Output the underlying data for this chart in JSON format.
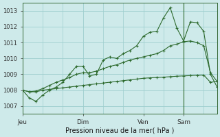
{
  "background_color": "#ceeaea",
  "plot_bg_color": "#ceeaea",
  "grid_color": "#9ecece",
  "line_color": "#2d6a2d",
  "title": "Pression niveau de la mer( hPa )",
  "ylim": [
    1006.5,
    1013.5
  ],
  "yticks": [
    1007,
    1008,
    1009,
    1010,
    1011,
    1012,
    1013
  ],
  "xtick_labels": [
    "Jeu",
    "Dim",
    "Ven",
    "Sam"
  ],
  "xtick_positions": [
    0,
    9,
    18,
    24
  ],
  "total_points": 30,
  "vline_pos": 24,
  "series1": [
    1008.0,
    1007.5,
    1007.3,
    1007.7,
    1008.0,
    1008.2,
    1008.5,
    1009.0,
    1009.5,
    1009.5,
    1008.9,
    1009.0,
    1009.9,
    1010.1,
    1010.0,
    1010.3,
    1010.5,
    1010.8,
    1011.4,
    1011.65,
    1011.7,
    1012.55,
    1013.2,
    1011.9,
    1011.1,
    1012.3,
    1012.25,
    1011.7,
    1009.0,
    1008.2
  ],
  "series2": [
    1008.0,
    1007.9,
    1007.9,
    1008.0,
    1008.05,
    1008.1,
    1008.15,
    1008.2,
    1008.25,
    1008.3,
    1008.35,
    1008.4,
    1008.45,
    1008.5,
    1008.55,
    1008.6,
    1008.65,
    1008.7,
    1008.75,
    1008.78,
    1008.8,
    1008.82,
    1008.85,
    1008.88,
    1008.9,
    1008.92,
    1008.94,
    1008.95,
    1008.5,
    1008.55
  ],
  "series3": [
    1008.0,
    1007.9,
    1007.95,
    1008.1,
    1008.3,
    1008.5,
    1008.65,
    1008.8,
    1009.0,
    1009.1,
    1009.1,
    1009.2,
    1009.35,
    1009.5,
    1009.6,
    1009.75,
    1009.9,
    1010.0,
    1010.1,
    1010.2,
    1010.3,
    1010.5,
    1010.8,
    1010.9,
    1011.05,
    1011.1,
    1011.0,
    1010.8,
    1009.1,
    1008.55
  ]
}
